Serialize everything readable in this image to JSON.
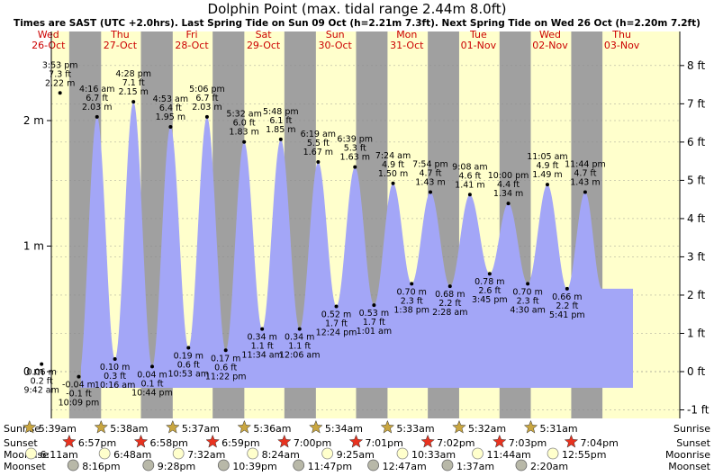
{
  "header": {
    "title": "Dolphin Point (max. tidal range 2.44m 8.0ft)",
    "subtitle": "Times are SAST (UTC +2.0hrs). Last Spring Tide on Sun 09 Oct (h=2.21m 7.3ft). Next Spring Tide on Wed 26 Oct (h=2.20m 7.2ft)"
  },
  "colors": {
    "day_band": "#ffffcc",
    "night_band": "#a0a0a0",
    "water": "#a3a6f7",
    "day_label": "#cc0000",
    "grid": "#888888"
  },
  "chart_data": {
    "type": "area",
    "title": "Dolphin Point (max. tidal range 2.44m 8.0ft)",
    "x_unit": "date-time (SAST)",
    "y_left_label": "m",
    "y_right_label": "ft",
    "y_left_ticks": [
      "0 m",
      "1 m",
      "2 m"
    ],
    "y_right_ticks": [
      "-1 ft",
      "0 ft",
      "1 ft",
      "2 ft",
      "3 ft",
      "4 ft",
      "5 ft",
      "6 ft",
      "7 ft",
      "8 ft"
    ],
    "days": [
      {
        "weekday": "Wed",
        "date": "26-Oct"
      },
      {
        "weekday": "Thu",
        "date": "27-Oct"
      },
      {
        "weekday": "Fri",
        "date": "28-Oct"
      },
      {
        "weekday": "Sat",
        "date": "29-Oct"
      },
      {
        "weekday": "Sun",
        "date": "30-Oct"
      },
      {
        "weekday": "Mon",
        "date": "31-Oct"
      },
      {
        "weekday": "Tue",
        "date": "01-Nov"
      },
      {
        "weekday": "Wed",
        "date": "02-Nov"
      },
      {
        "weekday": "Thu",
        "date": "03-Nov"
      }
    ],
    "tides": [
      {
        "time": "9:42 am",
        "day": 0,
        "h": 9.7,
        "m": 0.06,
        "ft": 0.2,
        "type": "low"
      },
      {
        "time": "3:53 pm",
        "day": 0,
        "h": 15.883,
        "m": 2.22,
        "ft": 7.3,
        "type": "high"
      },
      {
        "time": "10:09 pm",
        "day": 0,
        "h": 22.15,
        "m": -0.04,
        "ft": -0.1,
        "type": "low"
      },
      {
        "time": "4:16 am",
        "day": 1,
        "h": 4.267,
        "m": 2.03,
        "ft": 6.7,
        "type": "high"
      },
      {
        "time": "10:16 am",
        "day": 1,
        "h": 10.267,
        "m": 0.1,
        "ft": 0.3,
        "type": "low"
      },
      {
        "time": "4:28 pm",
        "day": 1,
        "h": 16.467,
        "m": 2.15,
        "ft": 7.1,
        "type": "high"
      },
      {
        "time": "10:44 pm",
        "day": 1,
        "h": 22.733,
        "m": 0.04,
        "ft": 0.1,
        "type": "low"
      },
      {
        "time": "4:53 am",
        "day": 2,
        "h": 4.883,
        "m": 1.95,
        "ft": 6.4,
        "type": "high"
      },
      {
        "time": "10:53 am",
        "day": 2,
        "h": 10.883,
        "m": 0.19,
        "ft": 0.6,
        "type": "low"
      },
      {
        "time": "5:06 pm",
        "day": 2,
        "h": 17.1,
        "m": 2.03,
        "ft": 6.7,
        "type": "high"
      },
      {
        "time": "11:22 pm",
        "day": 2,
        "h": 23.367,
        "m": 0.17,
        "ft": 0.6,
        "type": "low"
      },
      {
        "time": "5:32 am",
        "day": 3,
        "h": 5.533,
        "m": 1.83,
        "ft": 6.0,
        "type": "high"
      },
      {
        "time": "11:34 am",
        "day": 3,
        "h": 11.567,
        "m": 0.34,
        "ft": 1.1,
        "type": "low"
      },
      {
        "time": "5:48 pm",
        "day": 3,
        "h": 17.8,
        "m": 1.85,
        "ft": 6.1,
        "type": "high"
      },
      {
        "time": "12:06 am",
        "day": 4,
        "h": 0.1,
        "m": 0.34,
        "ft": 1.1,
        "type": "low"
      },
      {
        "time": "6:19 am",
        "day": 4,
        "h": 6.317,
        "m": 1.67,
        "ft": 5.5,
        "type": "high"
      },
      {
        "time": "12:24 pm",
        "day": 4,
        "h": 12.4,
        "m": 0.52,
        "ft": 1.7,
        "type": "low"
      },
      {
        "time": "6:39 pm",
        "day": 4,
        "h": 18.65,
        "m": 1.63,
        "ft": 5.3,
        "type": "high"
      },
      {
        "time": "1:01 am",
        "day": 5,
        "h": 1.017,
        "m": 0.53,
        "ft": 1.7,
        "type": "low"
      },
      {
        "time": "7:24 am",
        "day": 5,
        "h": 7.4,
        "m": 1.5,
        "ft": 4.9,
        "type": "high"
      },
      {
        "time": "1:38 pm",
        "day": 5,
        "h": 13.633,
        "m": 0.7,
        "ft": 2.3,
        "type": "low"
      },
      {
        "time": "7:54 pm",
        "day": 5,
        "h": 19.9,
        "m": 1.43,
        "ft": 4.7,
        "type": "high"
      },
      {
        "time": "2:28 am",
        "day": 6,
        "h": 2.467,
        "m": 0.68,
        "ft": 2.2,
        "type": "low"
      },
      {
        "time": "9:08 am",
        "day": 6,
        "h": 9.133,
        "m": 1.41,
        "ft": 4.6,
        "type": "high"
      },
      {
        "time": "3:45 pm",
        "day": 6,
        "h": 15.75,
        "m": 0.78,
        "ft": 2.6,
        "type": "low"
      },
      {
        "time": "10:00 pm",
        "day": 6,
        "h": 22.0,
        "m": 1.34,
        "ft": 4.4,
        "type": "high"
      },
      {
        "time": "4:30 am",
        "day": 7,
        "h": 4.5,
        "m": 0.7,
        "ft": 2.3,
        "type": "low"
      },
      {
        "time": "11:05 am",
        "day": 7,
        "h": 11.083,
        "m": 1.49,
        "ft": 4.9,
        "type": "high"
      },
      {
        "time": "5:41 pm",
        "day": 7,
        "h": 17.683,
        "m": 0.66,
        "ft": 2.2,
        "type": "low"
      },
      {
        "time": "11:44 pm",
        "day": 7,
        "h": 23.733,
        "m": 1.43,
        "ft": 4.7,
        "type": "high"
      }
    ],
    "sunrise": [
      "5:39am",
      "5:38am",
      "5:37am",
      "5:36am",
      "5:34am",
      "5:33am",
      "5:32am",
      "5:31am"
    ],
    "sunset": [
      "6:57pm",
      "6:58pm",
      "6:59pm",
      "7:00pm",
      "7:01pm",
      "7:02pm",
      "7:03pm",
      "7:04pm"
    ],
    "moonrise": [
      "6:11am",
      "6:48am",
      "7:32am",
      "8:24am",
      "9:25am",
      "10:33am",
      "11:44am",
      "12:55pm"
    ],
    "moonset": [
      "8:16pm",
      "9:28pm",
      "10:39pm",
      "11:47pm",
      "12:47am",
      "1:37am",
      "2:20am"
    ]
  },
  "footer": {
    "sunrise_label": "Sunrise",
    "sunset_label": "Sunset",
    "moonrise_label": "Moonrise",
    "moonset_label": "Moonset"
  }
}
